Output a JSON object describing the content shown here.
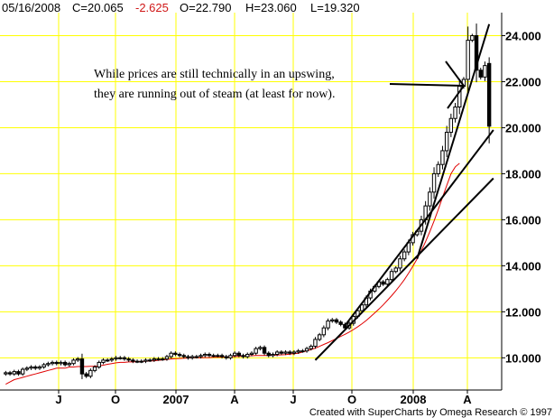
{
  "header": {
    "date": "05/16/2008",
    "close": "C=20.065",
    "change": "-2.625",
    "open": "O=22.790",
    "high": "H=23.060",
    "low": "L=19.320"
  },
  "annotation": {
    "line1": "While prices are still technically in an upswing,",
    "line2": "they are running out of steam (at least for now)."
  },
  "credit": "Created with SuperCharts by Omega Research © 1997",
  "colors": {
    "grid": "#ffff00",
    "candle": "#000000",
    "moving_average": "#e00000",
    "trendline": "#000000",
    "negative_change": "#d01818"
  },
  "chart_data": {
    "type": "candlestick",
    "title": "",
    "ylim": [
      8.6,
      25.0
    ],
    "yticks": [
      10,
      12,
      14,
      16,
      18,
      20,
      22,
      24
    ],
    "ytick_labels": [
      "10.000",
      "12.000",
      "14.000",
      "16.000",
      "18.000",
      "20.000",
      "22.000",
      "24.000"
    ],
    "x_tick_labels": [
      "J",
      "O",
      "2007",
      "A",
      "J",
      "O",
      "2008",
      "A"
    ],
    "grid": true,
    "series": [
      {
        "kind": "weekly_candles",
        "last": {
          "date": "05/16/2008",
          "open": 22.79,
          "high": 23.06,
          "low": 19.32,
          "close": 20.065,
          "change": -2.625
        },
        "close": [
          9.35,
          9.3,
          9.4,
          9.3,
          9.5,
          9.55,
          9.6,
          9.55,
          9.6,
          9.7,
          9.75,
          9.8,
          9.75,
          9.8,
          9.7,
          9.75,
          9.9,
          9.95,
          9.3,
          9.2,
          9.45,
          9.6,
          9.8,
          9.9,
          9.9,
          9.95,
          10.0,
          10.0,
          9.95,
          9.9,
          9.85,
          9.85,
          9.85,
          9.9,
          9.9,
          9.95,
          9.95,
          9.95,
          10.05,
          10.2,
          10.15,
          10.1,
          10.05,
          10.0,
          10.05,
          10.05,
          10.1,
          10.15,
          10.1,
          10.1,
          10.1,
          10.05,
          10.0,
          10.1,
          10.2,
          10.1,
          10.05,
          10.15,
          10.2,
          10.4,
          10.45,
          10.2,
          10.1,
          10.15,
          10.25,
          10.2,
          10.25,
          10.2,
          10.25,
          10.3,
          10.3,
          10.4,
          10.5,
          10.8,
          11.0,
          11.3,
          11.6,
          11.65,
          11.55,
          11.45,
          11.3,
          11.5,
          11.8,
          12.05,
          12.3,
          12.6,
          12.9,
          13.1,
          13.3,
          13.2,
          13.4,
          13.75,
          13.9,
          14.3,
          14.6,
          15.0,
          15.35,
          15.5,
          16.0,
          16.6,
          17.2,
          18.0,
          18.4,
          19.0,
          19.8,
          20.4,
          20.9,
          21.8,
          22.1,
          23.8,
          24.0,
          22.5,
          22.2,
          22.7,
          20.065
        ]
      },
      {
        "kind": "moving_average",
        "values": [
          8.85,
          8.95,
          9.05,
          9.1,
          9.15,
          9.2,
          9.25,
          9.3,
          9.35,
          9.4,
          9.45,
          9.5,
          9.55,
          9.55,
          9.55,
          9.6,
          9.6,
          9.62,
          9.62,
          9.62,
          9.63,
          9.63,
          9.65,
          9.68,
          9.72,
          9.75,
          9.78,
          9.8,
          9.8,
          9.82,
          9.82,
          9.83,
          9.84,
          9.85,
          9.86,
          9.87,
          9.89,
          9.91,
          9.93,
          9.95,
          9.96,
          9.97,
          9.98,
          9.99,
          10.0,
          10.0,
          10.0,
          10.01,
          10.01,
          10.02,
          10.02,
          10.03,
          10.03,
          10.04,
          10.05,
          10.06,
          10.07,
          10.08,
          10.09,
          10.1,
          10.1,
          10.1,
          10.1,
          10.11,
          10.12,
          10.13,
          10.14,
          10.16,
          10.18,
          10.2,
          10.25,
          10.3,
          10.36,
          10.42,
          10.5,
          10.58,
          10.66,
          10.75,
          10.84,
          10.93,
          11.02,
          11.12,
          11.23,
          11.35,
          11.48,
          11.62,
          11.78,
          11.95,
          12.12,
          12.3,
          12.5,
          12.7,
          12.92,
          13.15,
          13.4,
          13.68,
          13.98,
          14.3,
          14.65,
          15.05,
          15.48,
          15.95,
          16.45,
          16.98,
          17.5,
          18.0,
          18.3,
          18.45
        ]
      },
      {
        "kind": "trendlines",
        "lines": [
          {
            "from": {
              "bar": 73,
              "price": 9.9
            },
            "to": {
              "bar": 115,
              "price": 17.8
            }
          },
          {
            "from": {
              "bar": 80,
              "price": 11.4
            },
            "to": {
              "bar": 115,
              "price": 19.9
            }
          },
          {
            "from": {
              "bar": 97,
              "price": 14.3
            },
            "to": {
              "bar": 114,
              "price": 24.5
            }
          }
        ]
      }
    ]
  }
}
